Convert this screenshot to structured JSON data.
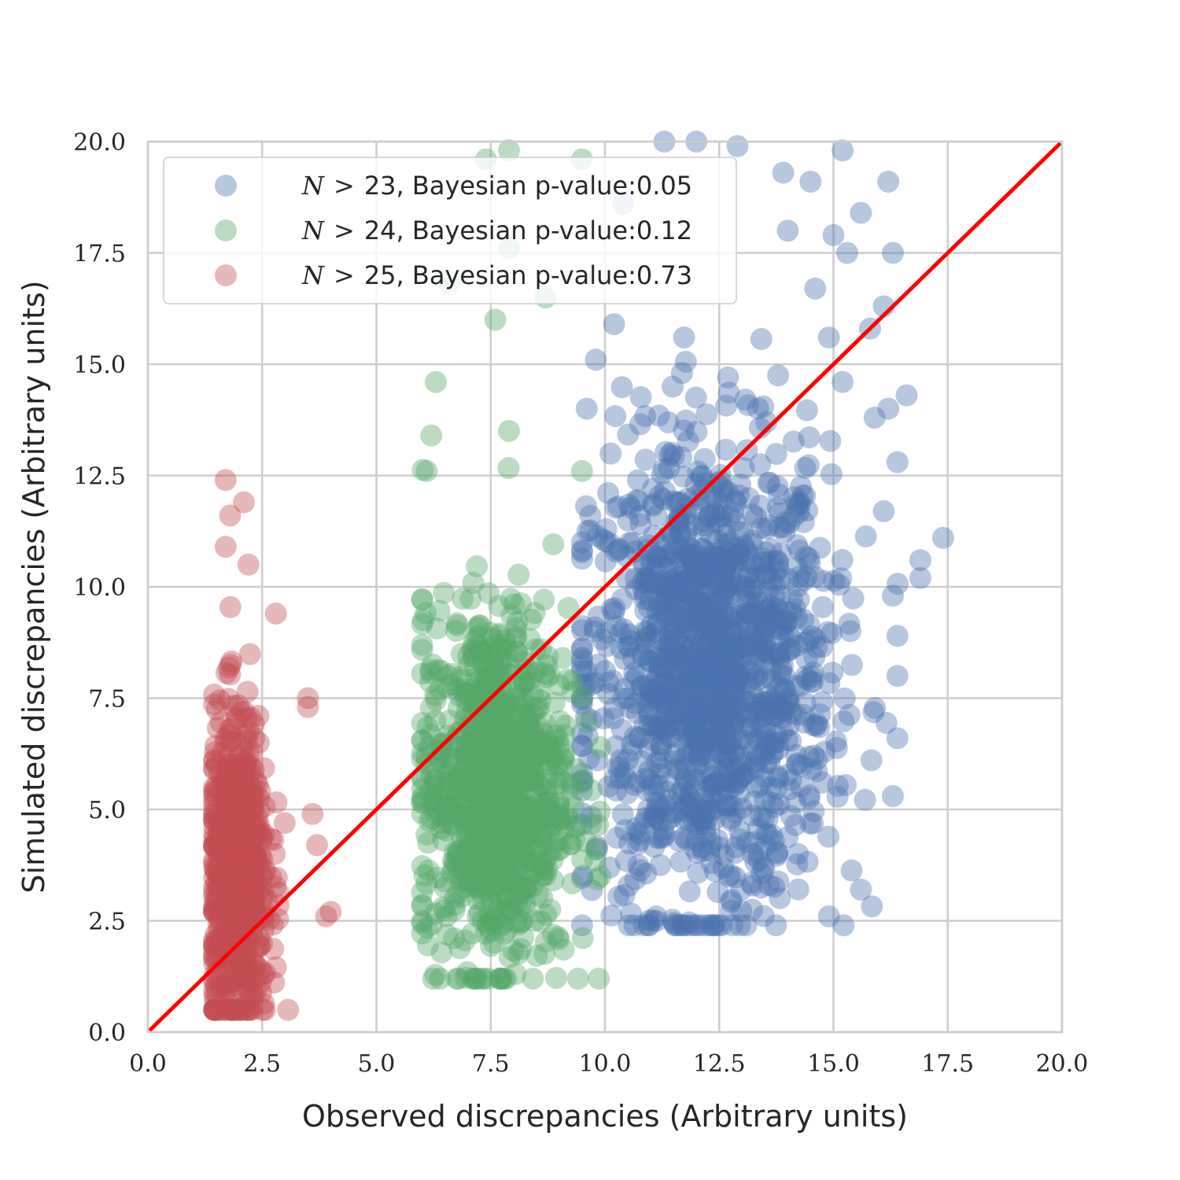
{
  "chart_data": {
    "type": "scatter",
    "xlabel": "Observed discrepancies (Arbitrary units)",
    "ylabel": "Simulated discrepancies (Arbitrary units)",
    "xlim": [
      0.0,
      20.0
    ],
    "ylim": [
      0.0,
      20.0
    ],
    "x_ticks": [
      "0.0",
      "2.5",
      "5.0",
      "7.5",
      "10.0",
      "12.5",
      "15.0",
      "17.5",
      "20.0"
    ],
    "y_ticks": [
      "0.0",
      "2.5",
      "5.0",
      "7.5",
      "10.0",
      "12.5",
      "15.0",
      "17.5",
      "20.0"
    ],
    "grid": true,
    "legend_position": "top-left",
    "reference_line": {
      "from": [
        0.0,
        0.0
      ],
      "to": [
        20.0,
        20.0
      ],
      "color": "#ff0000"
    },
    "series": [
      {
        "name": "N > 23, Bayesian p-value:0.05",
        "legend_symbol": "N",
        "legend_operator": ">",
        "legend_number": "23",
        "legend_suffix": ", Bayesian p-value:0.05",
        "color": "#4c72b0",
        "cluster": {
          "x_center": 12.3,
          "x_spread": 1.3,
          "y_center": 8.0,
          "y_spread": 2.6,
          "x_range": [
            9.5,
            17.5
          ],
          "y_range": [
            2.4,
            20.0
          ],
          "count": 1400
        },
        "outliers": [
          [
            11.3,
            20.0
          ],
          [
            12.0,
            20.0
          ],
          [
            12.9,
            19.9
          ],
          [
            15.2,
            19.8
          ],
          [
            13.9,
            19.3
          ],
          [
            16.2,
            19.1
          ],
          [
            14.5,
            19.1
          ],
          [
            15.6,
            18.4
          ],
          [
            14.0,
            18.0
          ],
          [
            15.0,
            17.9
          ],
          [
            16.3,
            17.5
          ],
          [
            15.3,
            17.5
          ],
          [
            14.6,
            16.7
          ],
          [
            16.1,
            16.3
          ],
          [
            15.8,
            15.8
          ],
          [
            14.9,
            15.6
          ],
          [
            15.2,
            14.6
          ],
          [
            16.6,
            14.3
          ],
          [
            16.2,
            14.0
          ],
          [
            15.9,
            13.8
          ],
          [
            16.4,
            12.8
          ],
          [
            16.1,
            11.7
          ],
          [
            17.4,
            11.1
          ],
          [
            16.9,
            10.6
          ],
          [
            16.9,
            10.2
          ],
          [
            16.3,
            9.8
          ],
          [
            16.4,
            8.9
          ],
          [
            16.4,
            8.0
          ],
          [
            16.4,
            6.6
          ],
          [
            16.3,
            5.3
          ],
          [
            14.9,
            2.6
          ],
          [
            15.6,
            3.2
          ],
          [
            10.4,
            18.6
          ],
          [
            9.6,
            14.0
          ],
          [
            9.8,
            15.1
          ],
          [
            10.2,
            15.9
          ]
        ]
      },
      {
        "name": "N > 24, Bayesian p-value:0.12",
        "legend_symbol": "N",
        "legend_operator": ">",
        "legend_number": "24",
        "legend_suffix": ", Bayesian p-value:0.12",
        "color": "#55a868",
        "cluster": {
          "x_center": 7.6,
          "x_spread": 0.8,
          "y_center": 5.5,
          "y_spread": 2.0,
          "x_range": [
            6.0,
            9.9
          ],
          "y_range": [
            1.2,
            19.9
          ],
          "count": 1000
        },
        "outliers": [
          [
            7.9,
            19.8
          ],
          [
            7.4,
            19.6
          ],
          [
            9.5,
            19.6
          ],
          [
            7.9,
            17.6
          ],
          [
            6.6,
            16.8
          ],
          [
            8.7,
            16.5
          ],
          [
            7.6,
            16.0
          ],
          [
            6.3,
            14.6
          ],
          [
            6.2,
            13.4
          ],
          [
            7.9,
            13.5
          ],
          [
            6.1,
            12.6
          ],
          [
            9.5,
            12.6
          ],
          [
            9.8,
            4.1
          ],
          [
            9.9,
            6.4
          ],
          [
            7.7,
            1.2
          ]
        ]
      },
      {
        "name": "N > 25, Bayesian p-value:0.73",
        "legend_symbol": "N",
        "legend_operator": ">",
        "legend_number": "25",
        "legend_suffix": ", Bayesian p-value:0.73",
        "color": "#c44e52",
        "cluster": {
          "x_center": 1.95,
          "x_spread": 0.35,
          "y_center": 3.6,
          "y_spread": 1.8,
          "x_range": [
            1.45,
            4.0
          ],
          "y_range": [
            0.5,
            12.5
          ],
          "count": 650
        },
        "outliers": [
          [
            1.7,
            12.4
          ],
          [
            2.1,
            11.9
          ],
          [
            1.8,
            11.6
          ],
          [
            1.7,
            10.9
          ],
          [
            2.2,
            10.5
          ],
          [
            2.8,
            9.4
          ],
          [
            3.5,
            7.5
          ],
          [
            3.5,
            7.3
          ],
          [
            3.6,
            4.9
          ],
          [
            3.7,
            4.2
          ],
          [
            4.0,
            2.7
          ],
          [
            3.9,
            2.6
          ]
        ]
      }
    ]
  }
}
